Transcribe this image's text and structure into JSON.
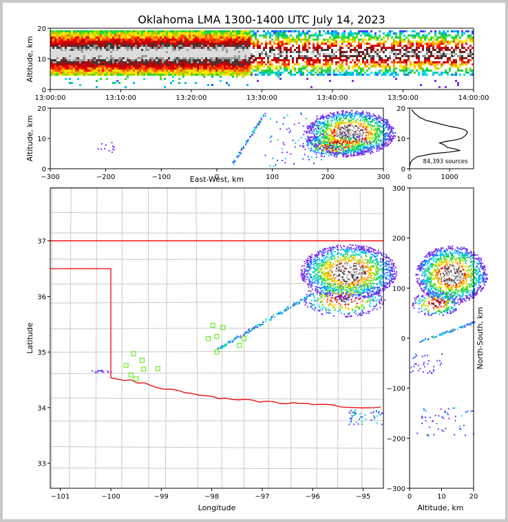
{
  "title": "Oklahoma LMA 1300-1400 UTC July 14, 2023",
  "chart_data": [
    {
      "name": "time-height",
      "type": "heatmap",
      "ylabel": "Altitude, km",
      "ylim": [
        0,
        20
      ],
      "yticks": [
        "0",
        "10",
        "20"
      ],
      "xticks": [
        "13:00:00",
        "13:10:00",
        "13:20:00",
        "13:30:00",
        "13:40:00",
        "13:50:00",
        "14:00:00"
      ],
      "xlim_minutes": [
        0,
        60
      ]
    },
    {
      "name": "east-west-altitude",
      "type": "heatmap",
      "xlabel": "East-West, km",
      "ylabel": "Altitude, km",
      "xlim": [
        -300,
        300
      ],
      "ylim": [
        0,
        20
      ],
      "xticks": [
        "−300",
        "−200",
        "−100",
        "0",
        "100",
        "200",
        "300"
      ],
      "yticks": [
        "0",
        "10",
        "20"
      ]
    },
    {
      "name": "altitude-histogram",
      "type": "line",
      "xlim": [
        0,
        1600
      ],
      "ylim": [
        0,
        20
      ],
      "xticks": [
        "0",
        "1000"
      ],
      "yticks": [
        "0",
        "10",
        "20"
      ],
      "annotation": "84,393 sources",
      "profile": {
        "altitude_km": [
          0.5,
          2,
          3,
          4,
          5,
          5.5,
          6,
          6.5,
          7,
          8,
          8.5,
          9,
          9.5,
          10,
          11,
          12,
          12.5,
          13,
          13.5,
          14,
          15,
          16,
          17,
          18,
          19,
          19.5
        ],
        "count": [
          0,
          20,
          80,
          200,
          600,
          1000,
          1250,
          1150,
          950,
          850,
          750,
          900,
          1150,
          1300,
          1400,
          1450,
          1420,
          1350,
          1200,
          1000,
          700,
          400,
          250,
          150,
          80,
          50
        ]
      }
    },
    {
      "name": "plan-view",
      "type": "heatmap",
      "xlabel": "Longitude",
      "ylabel": "Latitude",
      "xlim": [
        -101.2,
        -94.6
      ],
      "ylim": [
        32.55,
        37.95
      ],
      "xticks": [
        "−101",
        "−100",
        "−99",
        "−98",
        "−97",
        "−96",
        "−95"
      ],
      "yticks": [
        "33",
        "34",
        "35",
        "36",
        "37"
      ],
      "stations": [
        {
          "lon": -99.55,
          "lat": 34.97
        },
        {
          "lon": -99.38,
          "lat": 34.85
        },
        {
          "lon": -99.7,
          "lat": 34.76
        },
        {
          "lon": -99.35,
          "lat": 34.69
        },
        {
          "lon": -99.07,
          "lat": 34.7
        },
        {
          "lon": -99.6,
          "lat": 34.59
        },
        {
          "lon": -99.5,
          "lat": 34.52
        },
        {
          "lon": -97.98,
          "lat": 35.48
        },
        {
          "lon": -97.78,
          "lat": 35.44
        },
        {
          "lon": -97.9,
          "lat": 35.28
        },
        {
          "lon": -98.07,
          "lat": 35.24
        },
        {
          "lon": -97.9,
          "lat": 35.0
        },
        {
          "lon": -97.36,
          "lat": 35.24
        },
        {
          "lon": -97.45,
          "lat": 35.12
        }
      ]
    },
    {
      "name": "altitude-north-south",
      "type": "heatmap",
      "xlabel": "Altitude, km",
      "ylabel": "North-South, km",
      "xlim": [
        0,
        20
      ],
      "ylim": [
        -300,
        300
      ],
      "xticks": [
        "0",
        "10",
        "20"
      ],
      "yticks": [
        "−300",
        "−200",
        "−100",
        "0",
        "100",
        "200",
        "300"
      ]
    }
  ],
  "colors": {
    "palette": [
      "#8a2be2",
      "#5a33ff",
      "#1f5cff",
      "#00b4ff",
      "#00e0e0",
      "#12c85a",
      "#2ddc2d",
      "#9bd800",
      "#ffe600",
      "#ffae00",
      "#ff4d00",
      "#e60000",
      "#c80000",
      "#8c1010",
      "#3a3a3a",
      "#9a9a9a",
      "#dcdcdc"
    ],
    "state_border": "#ee0000",
    "county_lines": "#c8c8c8",
    "stations": "#66ee22",
    "histogram_line": "#000000"
  }
}
